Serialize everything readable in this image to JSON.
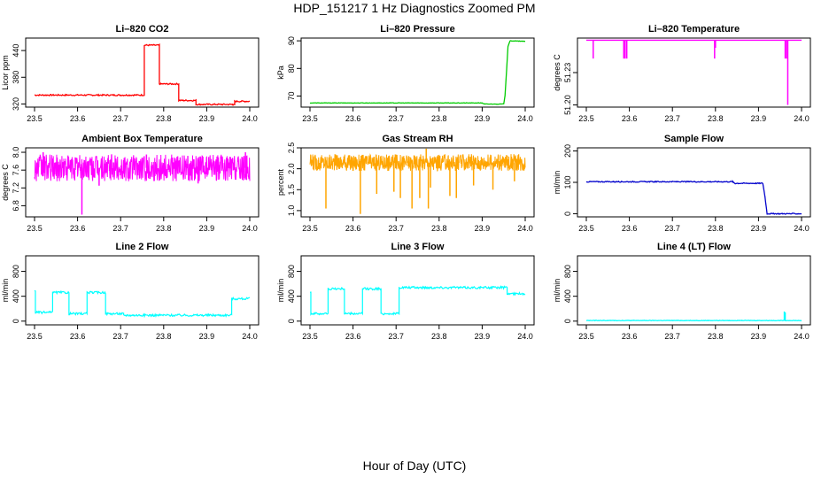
{
  "title": "HDP_151217  1 Hz Diagnostics Zoomed PM",
  "xlabel": "Hour of Day (UTC)",
  "chart_data": [
    {
      "type": "line",
      "title": "Li–820 CO2",
      "ylabel": "Licor ppm",
      "color": "#ff0000",
      "xlim": [
        23.5,
        24.0
      ],
      "ylim": [
        313,
        468
      ],
      "x_ticks": [
        "23.5",
        "23.6",
        "23.7",
        "23.8",
        "23.9",
        "24.0"
      ],
      "y_ticks": [
        320,
        380,
        440
      ],
      "y_tick_labels": [
        "320",
        "380",
        "440"
      ],
      "series": [
        {
          "style": "steps",
          "noise": 1.5,
          "spikes": [],
          "x": [
            23.5,
            23.755,
            23.755,
            23.79,
            23.79,
            23.835,
            23.835,
            23.875,
            23.875,
            23.96,
            23.96,
            23.965,
            23.965,
            24.0
          ],
          "y": [
            340,
            340,
            452,
            452,
            365,
            365,
            328,
            328,
            319,
            319,
            318,
            318,
            326,
            326
          ]
        }
      ]
    },
    {
      "type": "line",
      "title": "Li–820 Pressure",
      "ylabel": "kPa",
      "color": "#00cc00",
      "xlim": [
        23.5,
        24.0
      ],
      "ylim": [
        66,
        91
      ],
      "x_ticks": [
        "23.5",
        "23.6",
        "23.7",
        "23.8",
        "23.9",
        "24.0"
      ],
      "y_ticks": [
        70,
        80,
        90
      ],
      "y_tick_labels": [
        "70",
        "80",
        "90"
      ],
      "series": [
        {
          "style": "linear",
          "noise": 0.08,
          "spikes": [],
          "x": [
            23.5,
            23.9,
            23.905,
            23.95,
            23.953,
            23.957,
            23.96,
            23.965,
            24.0
          ],
          "y": [
            67.5,
            67.5,
            67.1,
            67.1,
            70,
            80,
            88,
            90,
            89.8
          ]
        }
      ]
    },
    {
      "type": "line",
      "title": "Li–820 Temperature",
      "ylabel": "degrees C",
      "color": "#ff00ff",
      "xlim": [
        23.5,
        24.0
      ],
      "ylim": [
        51.198,
        51.262
      ],
      "x_ticks": [
        "23.5",
        "23.6",
        "23.7",
        "23.8",
        "23.9",
        "24.0"
      ],
      "y_ticks": [
        51.2,
        51.23
      ],
      "y_tick_labels": [
        "51.20",
        "51.23"
      ],
      "series": [
        {
          "style": "linear",
          "noise": 0,
          "x": [
            23.5,
            24.0
          ],
          "y": [
            51.26,
            51.26
          ],
          "spikes": [
            [
              23.516,
              51.243
            ],
            [
              23.587,
              51.243
            ],
            [
              23.59,
              51.243
            ],
            [
              23.594,
              51.243
            ],
            [
              23.798,
              51.243
            ],
            [
              23.8,
              51.253
            ],
            [
              23.962,
              51.243
            ],
            [
              23.965,
              51.243
            ],
            [
              23.968,
              51.2
            ]
          ]
        }
      ]
    },
    {
      "type": "line",
      "title": "Ambient Box Temperature",
      "ylabel": "degrees C",
      "color": "#ff00ff",
      "xlim": [
        23.5,
        24.0
      ],
      "ylim": [
        6.55,
        8.1
      ],
      "x_ticks": [
        "23.5",
        "23.6",
        "23.7",
        "23.8",
        "23.9",
        "24.0"
      ],
      "y_ticks": [
        6.8,
        7.2,
        7.6,
        8.0
      ],
      "y_tick_labels": [
        "6.8",
        "7.2",
        "7.6",
        "8.0"
      ],
      "series": [
        {
          "style": "noise",
          "center": 7.65,
          "amp": 0.3,
          "x": [
            23.5,
            24.0
          ],
          "spikes": [
            [
              23.61,
              6.6
            ],
            [
              23.52,
              8.0
            ],
            [
              23.76,
              7.95
            ],
            [
              23.99,
              8.0
            ],
            [
              23.65,
              7.25
            ],
            [
              23.88,
              7.3
            ]
          ]
        }
      ]
    },
    {
      "type": "line",
      "title": "Gas Stream RH",
      "ylabel": "percent",
      "color": "#ffa500",
      "xlim": [
        23.5,
        24.0
      ],
      "ylim": [
        0.85,
        2.5
      ],
      "x_ticks": [
        "23.5",
        "23.6",
        "23.7",
        "23.8",
        "23.9",
        "24.0"
      ],
      "y_ticks": [
        1.0,
        1.5,
        2.0,
        2.5
      ],
      "y_tick_labels": [
        "1.0",
        "1.5",
        "2.0",
        "2.5"
      ],
      "series": [
        {
          "style": "noise",
          "center": 2.15,
          "amp": 0.2,
          "x": [
            23.5,
            24.0
          ],
          "spikes": [
            [
              23.537,
              1.05
            ],
            [
              23.6,
              1.95
            ],
            [
              23.617,
              0.92
            ],
            [
              23.655,
              1.4
            ],
            [
              23.695,
              1.45
            ],
            [
              23.71,
              1.3
            ],
            [
              23.737,
              1.05
            ],
            [
              23.755,
              1.3
            ],
            [
              23.775,
              1.05
            ],
            [
              23.78,
              1.55
            ],
            [
              23.825,
              1.35
            ],
            [
              23.84,
              1.3
            ],
            [
              23.88,
              1.6
            ],
            [
              23.925,
              1.5
            ],
            [
              23.975,
              1.7
            ],
            [
              23.77,
              2.48
            ]
          ]
        }
      ]
    },
    {
      "type": "line",
      "title": "Sample Flow",
      "ylabel": "ml/min",
      "color": "#0000cc",
      "xlim": [
        23.5,
        24.0
      ],
      "ylim": [
        -10,
        210
      ],
      "x_ticks": [
        "23.5",
        "23.6",
        "23.7",
        "23.8",
        "23.9",
        "24.0"
      ],
      "y_ticks": [
        0,
        100,
        200
      ],
      "y_tick_labels": [
        "0",
        "100",
        "200"
      ],
      "series": [
        {
          "style": "linear",
          "noise": 1.5,
          "spikes": [],
          "x": [
            23.5,
            23.84,
            23.845,
            23.91,
            23.915,
            23.92,
            24.0
          ],
          "y": [
            102,
            102,
            97,
            97,
            55,
            0,
            0
          ]
        }
      ]
    },
    {
      "type": "line",
      "title": "Line 2 Flow",
      "ylabel": "ml/min",
      "color": "#00ffff",
      "xlim": [
        23.5,
        24.0
      ],
      "ylim": [
        -60,
        1050
      ],
      "x_ticks": [
        "23.5",
        "23.6",
        "23.7",
        "23.8",
        "23.9",
        "24.0"
      ],
      "y_ticks": [
        0,
        400,
        800
      ],
      "y_tick_labels": [
        "0",
        "400",
        "800"
      ],
      "series": [
        {
          "style": "steps",
          "noise": 18,
          "spikes": [],
          "x": [
            23.5,
            23.502,
            23.502,
            23.542,
            23.542,
            23.58,
            23.58,
            23.622,
            23.622,
            23.665,
            23.665,
            23.707,
            23.707,
            23.958,
            23.958,
            24.0
          ],
          "y": [
            480,
            480,
            140,
            140,
            460,
            460,
            120,
            120,
            460,
            460,
            120,
            120,
            95,
            95,
            360,
            360
          ]
        }
      ]
    },
    {
      "type": "line",
      "title": "Line 3 Flow",
      "ylabel": "ml/min",
      "color": "#00ffff",
      "xlim": [
        23.5,
        24.0
      ],
      "ylim": [
        -60,
        1050
      ],
      "x_ticks": [
        "23.5",
        "23.6",
        "23.7",
        "23.8",
        "23.9",
        "24.0"
      ],
      "y_ticks": [
        0,
        400,
        800
      ],
      "y_tick_labels": [
        "0",
        "400",
        "800"
      ],
      "series": [
        {
          "style": "steps",
          "noise": 18,
          "spikes": [],
          "x": [
            23.5,
            23.502,
            23.502,
            23.542,
            23.542,
            23.58,
            23.58,
            23.622,
            23.622,
            23.665,
            23.665,
            23.707,
            23.707,
            23.958,
            23.958,
            24.0
          ],
          "y": [
            480,
            480,
            120,
            120,
            520,
            520,
            120,
            120,
            520,
            520,
            120,
            120,
            540,
            540,
            440,
            440
          ]
        }
      ]
    },
    {
      "type": "line",
      "title": "Line 4 (LT) Flow",
      "ylabel": "ml/min",
      "color": "#00ffff",
      "xlim": [
        23.5,
        24.0
      ],
      "ylim": [
        -60,
        1050
      ],
      "x_ticks": [
        "23.5",
        "23.6",
        "23.7",
        "23.8",
        "23.9",
        "24.0"
      ],
      "y_ticks": [
        0,
        400,
        800
      ],
      "y_tick_labels": [
        "0",
        "400",
        "800"
      ],
      "series": [
        {
          "style": "linear",
          "noise": 4,
          "x": [
            23.5,
            24.0
          ],
          "y": [
            10,
            10
          ],
          "spikes": [
            [
              23.96,
              155
            ],
            [
              23.962,
              140
            ]
          ]
        }
      ]
    }
  ]
}
